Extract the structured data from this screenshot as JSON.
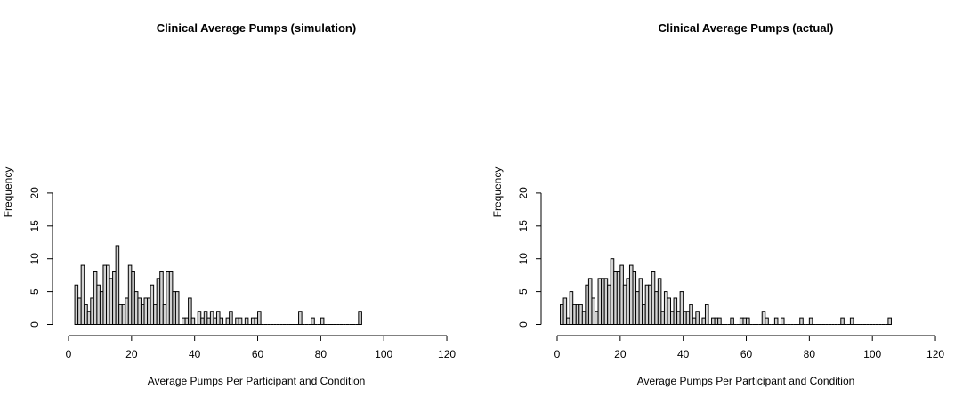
{
  "chart_data": [
    {
      "type": "bar",
      "title": "Clinical Average Pumps (simulation)",
      "xlabel": "Average Pumps Per Participant and Condition",
      "ylabel": "Frequency",
      "xlim": [
        0,
        120
      ],
      "ylim": [
        0,
        20
      ],
      "x_ticks": [
        "0",
        "20",
        "40",
        "60",
        "80",
        "100",
        "120"
      ],
      "y_ticks": [
        "0",
        "5",
        "10",
        "15",
        "20"
      ],
      "bin_width": 1,
      "bin_start": 2,
      "values": [
        6,
        4,
        9,
        3,
        2,
        4,
        8,
        6,
        5,
        9,
        9,
        7,
        8,
        12,
        3,
        3,
        4,
        9,
        8,
        5,
        4,
        3,
        4,
        4,
        6,
        3,
        7,
        8,
        3,
        8,
        8,
        5,
        5,
        0,
        1,
        1,
        4,
        1,
        0,
        2,
        1,
        2,
        1,
        2,
        1,
        2,
        1,
        0,
        1,
        2,
        0,
        1,
        1,
        0,
        1,
        0,
        1,
        1,
        2,
        0,
        0,
        0,
        0,
        0,
        0,
        0,
        0,
        0,
        0,
        0,
        0,
        2,
        0,
        0,
        0,
        1,
        0,
        0,
        1,
        0,
        0,
        0,
        0,
        0,
        0,
        0,
        0,
        0,
        0,
        0,
        2
      ],
      "grid": false,
      "fill_color": "#d3d3d3",
      "edge_color": "#000000"
    },
    {
      "type": "bar",
      "title": "Clinical Average Pumps (actual)",
      "xlabel": "Average Pumps Per Participant and Condition",
      "ylabel": "Frequency",
      "xlim": [
        0,
        120
      ],
      "ylim": [
        0,
        20
      ],
      "x_ticks": [
        "0",
        "20",
        "40",
        "60",
        "80",
        "100",
        "120"
      ],
      "y_ticks": [
        "0",
        "5",
        "10",
        "15",
        "20"
      ],
      "bin_width": 1,
      "bin_start": 1,
      "values": [
        3,
        4,
        1,
        5,
        3,
        3,
        3,
        2,
        6,
        7,
        4,
        2,
        7,
        7,
        7,
        6,
        10,
        8,
        8,
        9,
        6,
        7,
        9,
        8,
        5,
        7,
        3,
        6,
        6,
        8,
        5,
        7,
        2,
        5,
        4,
        2,
        4,
        2,
        5,
        2,
        2,
        3,
        1,
        2,
        0,
        1,
        3,
        0,
        1,
        1,
        1,
        0,
        0,
        0,
        1,
        0,
        0,
        1,
        1,
        1,
        0,
        0,
        0,
        0,
        2,
        1,
        0,
        0,
        1,
        0,
        1,
        0,
        0,
        0,
        0,
        0,
        1,
        0,
        0,
        1,
        0,
        0,
        0,
        0,
        0,
        0,
        0,
        0,
        0,
        1,
        0,
        0,
        1,
        0,
        0,
        0,
        0,
        0,
        0,
        0,
        0,
        0,
        0,
        0,
        1
      ],
      "grid": false,
      "fill_color": "#d3d3d3",
      "edge_color": "#000000"
    }
  ]
}
